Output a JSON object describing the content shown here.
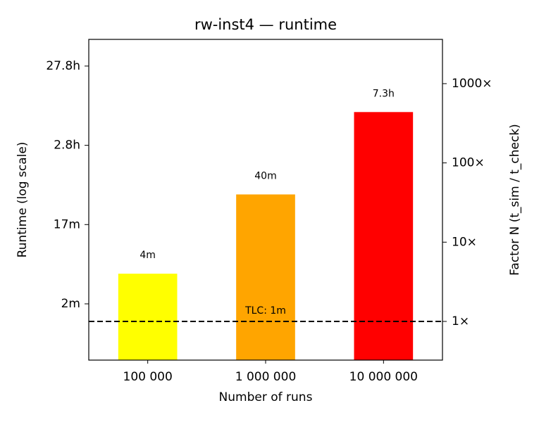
{
  "chart_data": {
    "type": "bar",
    "title": "rw-inst4 — runtime",
    "x_label": "Number of runs",
    "y_label": "Runtime (log scale)",
    "y2_label": "Factor N (t_sim / t_check)",
    "categories": [
      "100 000",
      "1 000 000",
      "10 000 000"
    ],
    "values": [
      240,
      2400,
      26280
    ],
    "value_labels": [
      "4m",
      "40m",
      "7.3h"
    ],
    "colors": [
      "#ffff00",
      "#ffa500",
      "#ff0000"
    ],
    "y_scale": "log",
    "ylim": [
      19.5,
      217000
    ],
    "yticks": [
      {
        "value": 100,
        "label": "2m"
      },
      {
        "value": 1000,
        "label": "17m"
      },
      {
        "value": 10000,
        "label": "2.8h"
      },
      {
        "value": 100000,
        "label": "27.8h"
      }
    ],
    "y2_scale": "log",
    "y2lim": [
      0.325,
      3617
    ],
    "y2ticks": [
      {
        "value": 1,
        "label": "1×"
      },
      {
        "value": 10,
        "label": "10×"
      },
      {
        "value": 100,
        "label": "100×"
      },
      {
        "value": 1000,
        "label": "1000×"
      }
    ],
    "reference_line": {
      "value": 60,
      "label": "TLC: 1m"
    }
  }
}
